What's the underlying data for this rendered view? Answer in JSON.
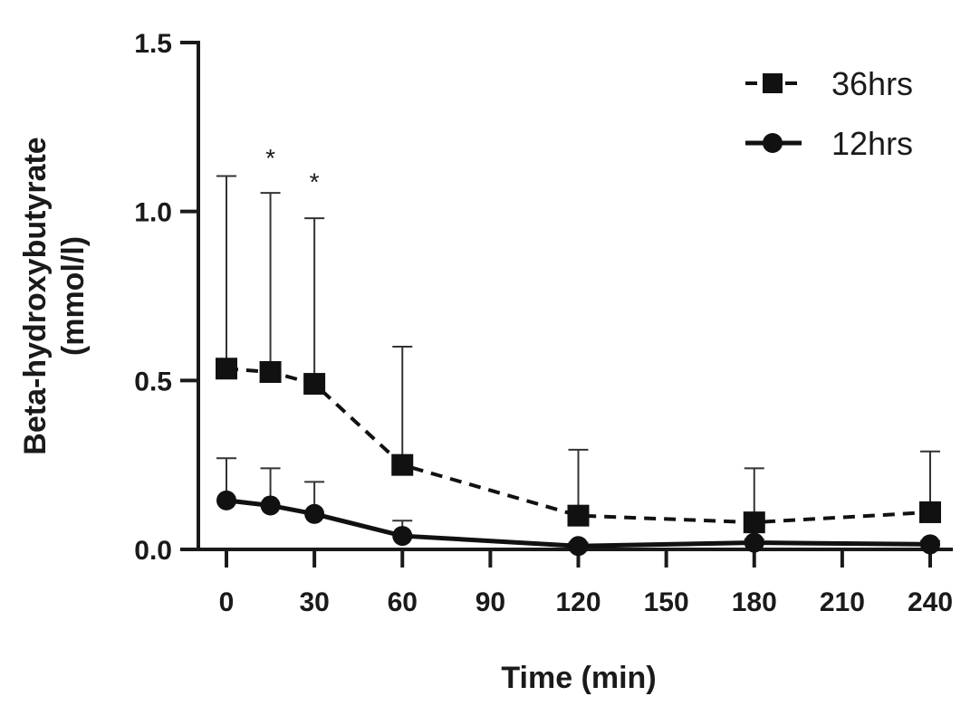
{
  "chart_data": {
    "type": "line",
    "title": "",
    "xlabel": "Time (min)",
    "ylabel_line1": "Beta-hydroxybutyrate",
    "ylabel_line2": "(mmol/l)",
    "x": [
      0,
      15,
      30,
      60,
      120,
      180,
      240
    ],
    "xlim": [
      0,
      240
    ],
    "ylim": [
      0,
      1.5
    ],
    "x_ticks": [
      0,
      30,
      60,
      90,
      120,
      150,
      180,
      210,
      240
    ],
    "x_tick_labels": [
      "0",
      "30",
      "60",
      "90",
      "120",
      "150",
      "180",
      "210",
      "240"
    ],
    "y_ticks": [
      0,
      0.5,
      1.0,
      1.5
    ],
    "y_tick_labels": [
      "0.0",
      "0.5",
      "1.0",
      "1.5"
    ],
    "grid": false,
    "legend_position": "top-right",
    "series": [
      {
        "name": "36hrs",
        "marker": "square",
        "line_style": "dashed",
        "color": "#111111",
        "values": [
          0.535,
          0.525,
          0.49,
          0.25,
          0.1,
          0.08,
          0.11
        ],
        "error_upper": [
          1.105,
          1.055,
          0.98,
          0.6,
          0.295,
          0.24,
          0.29
        ]
      },
      {
        "name": "12hrs",
        "marker": "circle",
        "line_style": "solid",
        "color": "#111111",
        "values": [
          0.145,
          0.13,
          0.105,
          0.04,
          0.01,
          0.02,
          0.015
        ],
        "error_upper": [
          0.27,
          0.24,
          0.2,
          0.085,
          0.02,
          0.03,
          0.025
        ]
      }
    ],
    "annotations": [
      {
        "text": "*",
        "x": 15,
        "y": 1.17
      },
      {
        "text": "*",
        "x": 30,
        "y": 1.1
      }
    ]
  }
}
